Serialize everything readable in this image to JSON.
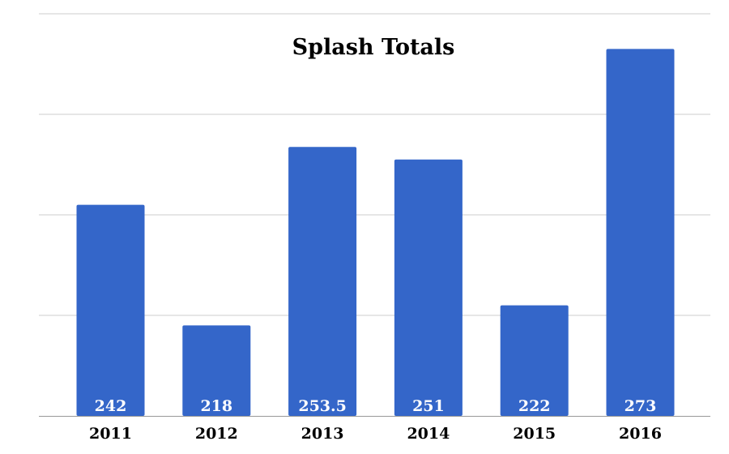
{
  "chart_data": {
    "type": "bar",
    "title": "Splash Totals",
    "xlabel": "",
    "ylabel": "",
    "categories": [
      "2011",
      "2012",
      "2013",
      "2014",
      "2015",
      "2016"
    ],
    "values": [
      242,
      218,
      253.5,
      251,
      222,
      273
    ],
    "data_labels": [
      "242",
      "218",
      "253.5",
      "251",
      "222",
      "273"
    ],
    "ylim": [
      200,
      280
    ],
    "grid": true,
    "legend": "none",
    "bar_color": "#3466C9",
    "grid_color": "#CCCCCC",
    "axis_color": "#999999"
  }
}
